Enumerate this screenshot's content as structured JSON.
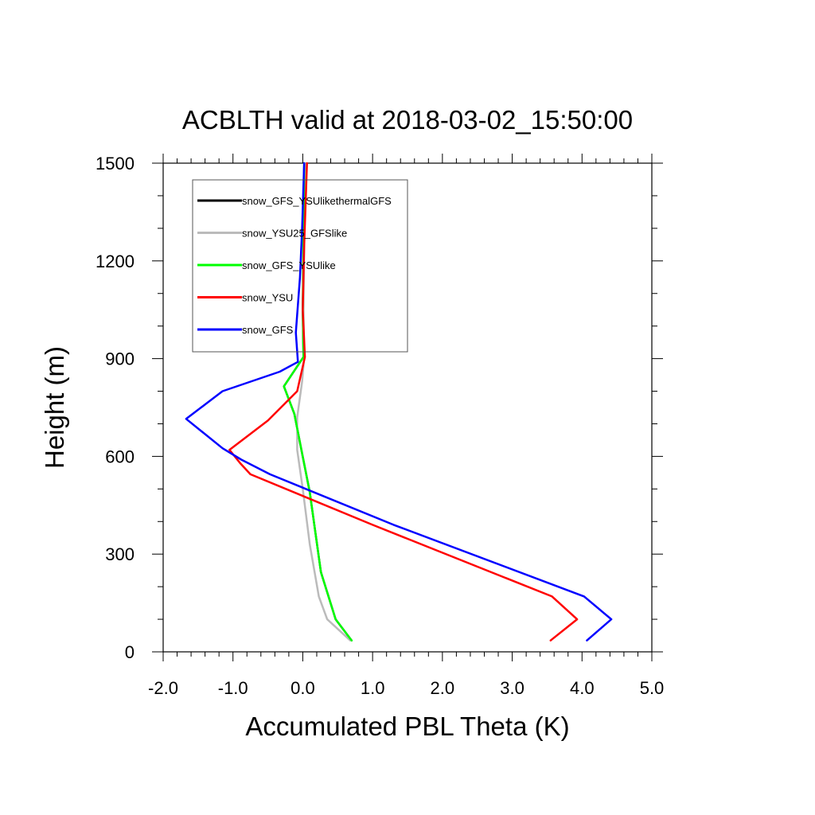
{
  "chart_data": {
    "type": "line",
    "title": "ACBLTH valid at 2018-03-02_15:50:00",
    "xlabel": "Accumulated PBL Theta (K)",
    "ylabel": "Height (m)",
    "xlim": [
      -2.0,
      5.0
    ],
    "ylim": [
      0,
      1500
    ],
    "x_ticks": [
      -2.0,
      -1.0,
      0.0,
      1.0,
      2.0,
      3.0,
      4.0,
      5.0
    ],
    "x_tick_labels": [
      "-2.0",
      "-1.0",
      "0.0",
      "1.0",
      "2.0",
      "3.0",
      "4.0",
      "5.0"
    ],
    "y_ticks": [
      0,
      300,
      600,
      900,
      1200,
      1500
    ],
    "y_tick_labels": [
      "0",
      "300",
      "600",
      "900",
      "1200",
      "1500"
    ],
    "grid": false,
    "legend_position": "top-left",
    "series": [
      {
        "name": "snow_GFS_YSUlikethermalGFS",
        "color": "#000000",
        "points": [
          {
            "x": 0.7,
            "y": 35
          },
          {
            "x": 0.47,
            "y": 100
          },
          {
            "x": 0.26,
            "y": 245
          },
          {
            "x": 0.1,
            "y": 490
          },
          {
            "x": -0.02,
            "y": 620
          },
          {
            "x": -0.12,
            "y": 730
          },
          {
            "x": -0.27,
            "y": 815
          },
          {
            "x": 0.01,
            "y": 905
          },
          {
            "x": 0.0,
            "y": 1050
          },
          {
            "x": 0.01,
            "y": 1250
          },
          {
            "x": 0.02,
            "y": 1500
          }
        ]
      },
      {
        "name": "snow_YSU25_GFSlike",
        "color": "#bbbbbb",
        "points": [
          {
            "x": 0.68,
            "y": 35
          },
          {
            "x": 0.35,
            "y": 100
          },
          {
            "x": 0.23,
            "y": 170
          },
          {
            "x": 0.1,
            "y": 330
          },
          {
            "x": 0.0,
            "y": 500
          },
          {
            "x": -0.08,
            "y": 620
          },
          {
            "x": -0.08,
            "y": 720
          },
          {
            "x": -0.01,
            "y": 830
          },
          {
            "x": 0.02,
            "y": 905
          },
          {
            "x": 0.01,
            "y": 1050
          },
          {
            "x": 0.02,
            "y": 1250
          },
          {
            "x": 0.03,
            "y": 1500
          }
        ]
      },
      {
        "name": "snow_GFS_YSUlike",
        "color": "#00ff00",
        "points": [
          {
            "x": 0.7,
            "y": 35
          },
          {
            "x": 0.47,
            "y": 100
          },
          {
            "x": 0.26,
            "y": 245
          },
          {
            "x": 0.1,
            "y": 490
          },
          {
            "x": -0.02,
            "y": 620
          },
          {
            "x": -0.12,
            "y": 730
          },
          {
            "x": -0.27,
            "y": 815
          },
          {
            "x": 0.01,
            "y": 905
          },
          {
            "x": 0.0,
            "y": 1050
          },
          {
            "x": 0.01,
            "y": 1250
          },
          {
            "x": 0.02,
            "y": 1500
          }
        ]
      },
      {
        "name": "snow_YSU",
        "color": "#ff0000",
        "points": [
          {
            "x": 3.55,
            "y": 35
          },
          {
            "x": 3.93,
            "y": 100
          },
          {
            "x": 3.57,
            "y": 170
          },
          {
            "x": 1.0,
            "y": 390
          },
          {
            "x": -0.75,
            "y": 545
          },
          {
            "x": -0.9,
            "y": 580
          },
          {
            "x": -1.05,
            "y": 620
          },
          {
            "x": -0.5,
            "y": 710
          },
          {
            "x": -0.08,
            "y": 800
          },
          {
            "x": 0.03,
            "y": 905
          },
          {
            "x": 0.0,
            "y": 1050
          },
          {
            "x": 0.02,
            "y": 1250
          },
          {
            "x": 0.06,
            "y": 1500
          }
        ]
      },
      {
        "name": "snow_GFS",
        "color": "#0000ff",
        "points": [
          {
            "x": 4.07,
            "y": 35
          },
          {
            "x": 4.42,
            "y": 100
          },
          {
            "x": 4.03,
            "y": 170
          },
          {
            "x": 1.3,
            "y": 390
          },
          {
            "x": -0.47,
            "y": 545
          },
          {
            "x": -0.88,
            "y": 590
          },
          {
            "x": -1.15,
            "y": 625
          },
          {
            "x": -1.67,
            "y": 715
          },
          {
            "x": -1.15,
            "y": 800
          },
          {
            "x": -0.33,
            "y": 860
          },
          {
            "x": -0.07,
            "y": 890
          },
          {
            "x": -0.1,
            "y": 980
          },
          {
            "x": -0.04,
            "y": 1150
          },
          {
            "x": -0.01,
            "y": 1300
          },
          {
            "x": 0.02,
            "y": 1500
          }
        ]
      }
    ]
  }
}
